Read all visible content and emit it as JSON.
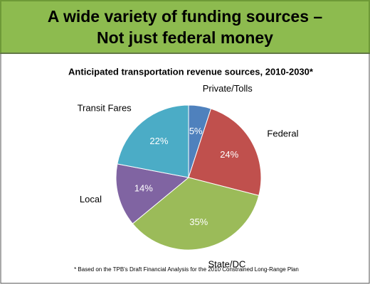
{
  "header": {
    "lines": [
      "A wide variety of funding sources –",
      "Not just federal money"
    ]
  },
  "chart_data": {
    "type": "pie",
    "title": "Anticipated transportation revenue sources,  2010-2030*",
    "categories": [
      "Private/Tolls",
      "Federal",
      "State/DC",
      "Local",
      "Transit Fares"
    ],
    "values": [
      5,
      24,
      35,
      14,
      22
    ],
    "value_labels": [
      "5%",
      "24%",
      "35%",
      "14%",
      "22%"
    ],
    "colors": [
      "#4f81bd",
      "#c0504d",
      "#9bbb59",
      "#8064a2",
      "#4bacc6"
    ],
    "note": "* Based on the TPB's Draft Financial Analysis for the 2010 Constrained Long-Range Plan"
  }
}
